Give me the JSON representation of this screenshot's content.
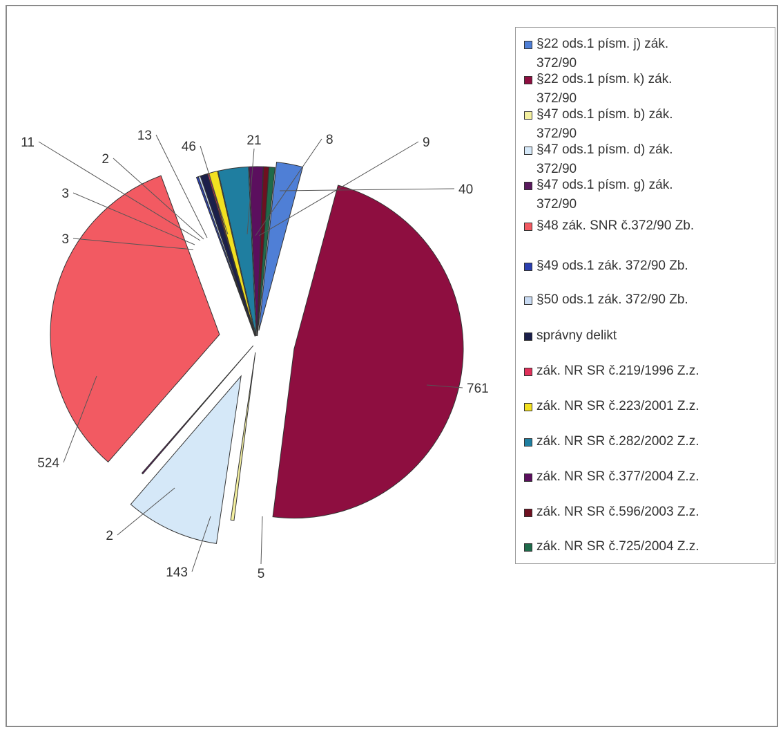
{
  "chart_data": {
    "type": "pie",
    "title": "",
    "legend_position": "right",
    "slices": [
      {
        "label": "§22 ods.1 písm. j) zák.\n372/90",
        "value": 40,
        "color": "#4f7fd6"
      },
      {
        "label": "§22 ods.1 písm. k) zák.\n372/90",
        "value": 761,
        "color": "#8e0e40"
      },
      {
        "label": "§47 ods.1 písm. b) zák.\n372/90",
        "value": 5,
        "color": "#f4f0a0"
      },
      {
        "label": "§47 ods.1 písm. d) zák.\n372/90",
        "value": 143,
        "color": "#d5e8f8"
      },
      {
        "label": "§47 ods.1 písm. g) zák.\n372/90",
        "value": 2,
        "color": "#5a1a5e"
      },
      {
        "label": "§48 zák. SNR č.372/90 Zb.",
        "value": 524,
        "color": "#f25a62"
      },
      {
        "label": "§49 ods.1 zák. 372/90 Zb.",
        "value": 3,
        "color": "#2b3fb0"
      },
      {
        "label": "§50 ods.1 zák. 372/90 Zb.",
        "value": 3,
        "color": "#c8daf2"
      },
      {
        "label": "správny delikt",
        "value": 11,
        "color": "#1b1f4a"
      },
      {
        "label": "zák. NR SR č.219/1996 Z.z.",
        "value": 2,
        "color": "#e0305a"
      },
      {
        "label": "zák. NR SR č.223/2001 Z.z.",
        "value": 13,
        "color": "#f2e020"
      },
      {
        "label": "zák. NR SR č.282/2002 Z.z.",
        "value": 46,
        "color": "#1f7ea0"
      },
      {
        "label": "zák. NR SR č.377/2004 Z.z.",
        "value": 21,
        "color": "#5b0f5e"
      },
      {
        "label": "zák. NR SR č.596/2003 Z.z.",
        "value": 8,
        "color": "#6e1020"
      },
      {
        "label": "zák. NR SR č.725/2004 Z.z.",
        "value": 9,
        "color": "#1f6a4a"
      }
    ]
  }
}
